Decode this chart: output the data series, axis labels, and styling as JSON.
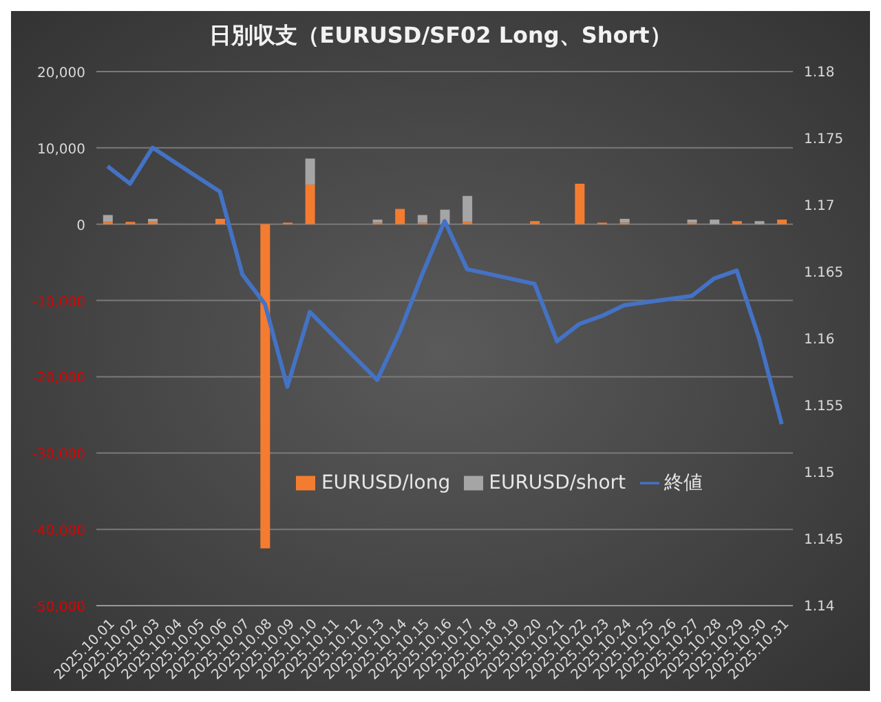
{
  "chart_data": {
    "type": "bar",
    "title": "日別収支（EURUSD/SF02 Long、Short）",
    "categories": [
      "2025.10.01",
      "2025.10.02",
      "2025.10.03",
      "2025.10.04",
      "2025.10.05",
      "2025.10.06",
      "2025.10.07",
      "2025.10.08",
      "2025.10.09",
      "2025.10.10",
      "2025.10.11",
      "2025.10.12",
      "2025.10.13",
      "2025.10.14",
      "2025.10.15",
      "2025.10.16",
      "2025.10.17",
      "2025.10.18",
      "2025.10.19",
      "2025.10.20",
      "2025.10.21",
      "2025.10.22",
      "2025.10.23",
      "2025.10.24",
      "2025.10.25",
      "2025.10.26",
      "2025.10.27",
      "2025.10.28",
      "2025.10.29",
      "2025.10.30",
      "2025.10.31"
    ],
    "stacked": true,
    "series": [
      {
        "name": "EURUSD/long",
        "color": "#f47c30",
        "values": [
          300,
          300,
          300,
          0,
          0,
          700,
          0,
          -42500,
          200,
          5200,
          0,
          0,
          200,
          2000,
          200,
          0,
          300,
          0,
          0,
          400,
          0,
          5300,
          200,
          200,
          0,
          0,
          200,
          0,
          400,
          0,
          600
        ]
      },
      {
        "name": "EURUSD/short",
        "color": "#a5a5a5",
        "values": [
          900,
          0,
          400,
          0,
          0,
          0,
          0,
          0,
          0,
          3400,
          0,
          0,
          400,
          0,
          1000,
          1900,
          3400,
          0,
          0,
          0,
          0,
          0,
          0,
          500,
          0,
          0,
          400,
          600,
          0,
          400,
          0
        ]
      },
      {
        "name": "終値",
        "type": "line",
        "axis": "y2",
        "color": "#4472c4",
        "values": [
          1.1729,
          1.1716,
          1.1743,
          null,
          null,
          1.171,
          1.1648,
          1.1626,
          1.1564,
          1.162,
          null,
          null,
          1.1569,
          1.1605,
          1.1648,
          1.1688,
          1.1652,
          null,
          null,
          1.1641,
          1.1598,
          1.1611,
          1.1617,
          1.1625,
          null,
          null,
          1.1632,
          1.1645,
          1.1651,
          1.16,
          1.1536
        ]
      }
    ],
    "ylim": [
      -50000,
      20000
    ],
    "yticks": [
      {
        "value": -50000,
        "label": "-50,000"
      },
      {
        "value": -40000,
        "label": "-40,000"
      },
      {
        "value": -30000,
        "label": "-30,000"
      },
      {
        "value": -20000,
        "label": "-20,000"
      },
      {
        "value": -10000,
        "label": "-10,000"
      },
      0,
      {
        "value": 10000,
        "label": "10,000"
      },
      {
        "value": 20000,
        "label": "20,000"
      }
    ],
    "y2lim": [
      1.14,
      1.18
    ],
    "y2ticks": [
      1.14,
      1.145,
      1.15,
      1.155,
      1.16,
      1.165,
      1.17,
      1.175,
      1.18
    ],
    "grid": "y",
    "legend": "center",
    "marker": "none",
    "line_style": "solid"
  }
}
